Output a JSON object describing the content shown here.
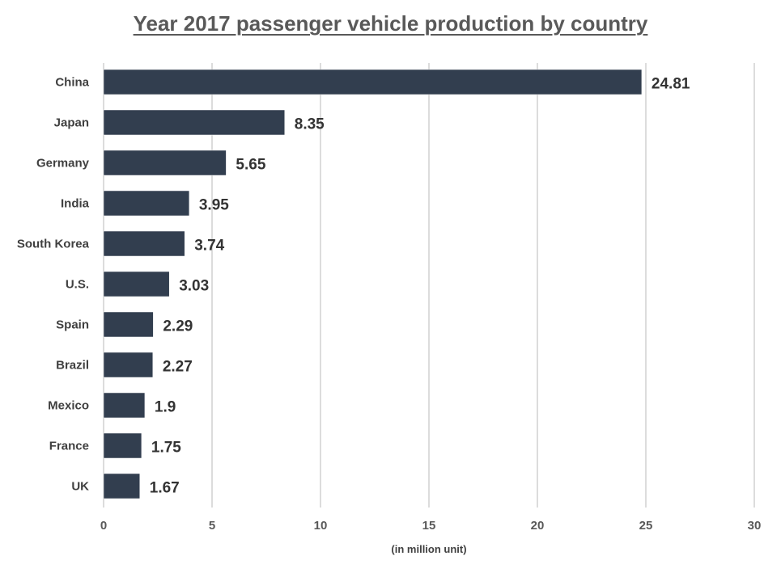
{
  "chart_data": {
    "type": "bar",
    "orientation": "horizontal",
    "title": "Year 2017 passenger vehicle production by country",
    "categories": [
      "China",
      "Japan",
      "Germany",
      "India",
      "South Korea",
      "U.S.",
      "Spain",
      "Brazil",
      "Mexico",
      "France",
      "UK"
    ],
    "values": [
      24.81,
      8.35,
      5.65,
      3.95,
      3.74,
      3.03,
      2.29,
      2.27,
      1.9,
      1.75,
      1.67
    ],
    "value_labels": [
      "24.81",
      "8.35",
      "5.65",
      "3.95",
      "3.74",
      "3.03",
      "2.29",
      "2.27",
      "1.9",
      "1.75",
      "1.67"
    ],
    "xlabel": "(in million unit)",
    "ylabel": "",
    "xlim": [
      0,
      30
    ],
    "xticks": [
      0,
      5,
      10,
      15,
      20,
      25,
      30
    ],
    "grid": true,
    "legend": "none",
    "bar_color": "#323e4f",
    "grid_color": "#d0d0d0"
  }
}
